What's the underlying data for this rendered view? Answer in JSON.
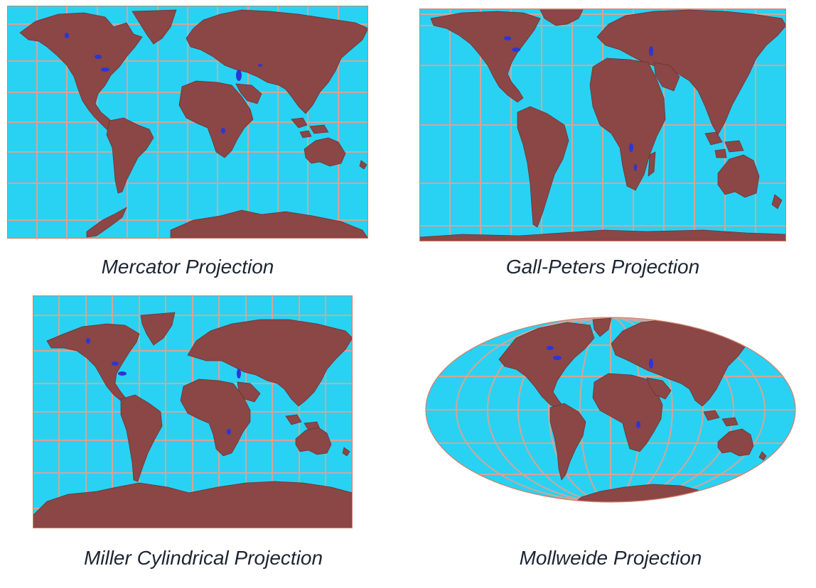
{
  "colors": {
    "ocean": "#29d2f3",
    "land": "#8b4646",
    "lakes": "#2a36d8",
    "graticule": "#d4a597",
    "outline": "#d0806a",
    "caption_text": "#1d2533"
  },
  "maps": [
    {
      "id": "mercator",
      "caption": "Mercator Projection"
    },
    {
      "id": "gall-peters",
      "caption": "Gall-Peters Projection"
    },
    {
      "id": "miller",
      "caption": "Miller Cylindrical Projection"
    },
    {
      "id": "mollweide",
      "caption": "Mollweide Projection"
    }
  ]
}
